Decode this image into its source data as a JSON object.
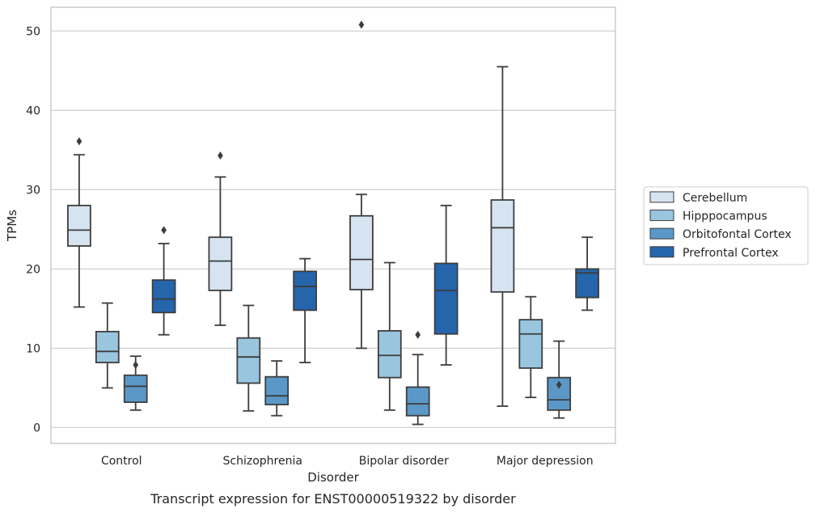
{
  "chart_data": {
    "type": "boxplot",
    "caption": "Transcript expression for ENST00000519322 by disorder",
    "xlabel": "Disorder",
    "ylabel": "TPMs",
    "ylim": [
      -2,
      53
    ],
    "yticks": [
      0,
      10,
      20,
      30,
      40,
      50
    ],
    "grid": "horizontal",
    "legend_position": "right",
    "categories": [
      "Control",
      "Schizophrenia",
      "Bipolar disorder",
      "Major depression"
    ],
    "series": [
      {
        "name": "Cerebellum",
        "color": "#d6e4f1",
        "boxes": [
          {
            "whislo": 15.2,
            "q1": 22.9,
            "med": 24.9,
            "q3": 28.0,
            "whishi": 34.4,
            "fliers": [
              36.1
            ]
          },
          {
            "whislo": 12.9,
            "q1": 17.3,
            "med": 21.0,
            "q3": 24.0,
            "whishi": 31.6,
            "fliers": [
              34.3
            ]
          },
          {
            "whislo": 10.0,
            "q1": 17.4,
            "med": 21.2,
            "q3": 26.7,
            "whishi": 29.4,
            "fliers": [
              50.8
            ]
          },
          {
            "whislo": 2.7,
            "q1": 17.1,
            "med": 25.2,
            "q3": 28.7,
            "whishi": 45.5,
            "fliers": []
          }
        ]
      },
      {
        "name": "Hipppocampus",
        "color": "#9ac5df",
        "boxes": [
          {
            "whislo": 5.0,
            "q1": 8.2,
            "med": 9.6,
            "q3": 12.1,
            "whishi": 15.7,
            "fliers": []
          },
          {
            "whislo": 2.1,
            "q1": 5.6,
            "med": 8.9,
            "q3": 11.3,
            "whishi": 15.4,
            "fliers": []
          },
          {
            "whislo": 2.2,
            "q1": 6.3,
            "med": 9.1,
            "q3": 12.2,
            "whishi": 20.8,
            "fliers": []
          },
          {
            "whislo": 3.8,
            "q1": 7.5,
            "med": 11.8,
            "q3": 13.6,
            "whishi": 16.5,
            "fliers": []
          }
        ]
      },
      {
        "name": "Orbitofontal Cortex",
        "color": "#5b98c7",
        "boxes": [
          {
            "whislo": 2.2,
            "q1": 3.2,
            "med": 5.2,
            "q3": 6.6,
            "whishi": 9.0,
            "fliers": [
              7.9
            ]
          },
          {
            "whislo": 1.5,
            "q1": 2.9,
            "med": 4.0,
            "q3": 6.4,
            "whishi": 8.4,
            "fliers": []
          },
          {
            "whislo": 0.4,
            "q1": 1.5,
            "med": 3.0,
            "q3": 5.1,
            "whishi": 9.2,
            "fliers": [
              11.7
            ]
          },
          {
            "whislo": 1.2,
            "q1": 2.2,
            "med": 3.5,
            "q3": 6.3,
            "whishi": 10.9,
            "fliers": [
              5.4
            ]
          }
        ]
      },
      {
        "name": "Prefrontal Cortex",
        "color": "#2565ac",
        "boxes": [
          {
            "whislo": 11.7,
            "q1": 14.5,
            "med": 16.2,
            "q3": 18.6,
            "whishi": 23.2,
            "fliers": [
              24.9
            ]
          },
          {
            "whislo": 8.2,
            "q1": 14.8,
            "med": 17.8,
            "q3": 19.7,
            "whishi": 21.3,
            "fliers": []
          },
          {
            "whislo": 7.9,
            "q1": 11.8,
            "med": 17.3,
            "q3": 20.7,
            "whishi": 28.0,
            "fliers": []
          },
          {
            "whislo": 14.8,
            "q1": 16.4,
            "med": 19.5,
            "q3": 20.0,
            "whishi": 24.0,
            "fliers": []
          }
        ]
      }
    ]
  }
}
